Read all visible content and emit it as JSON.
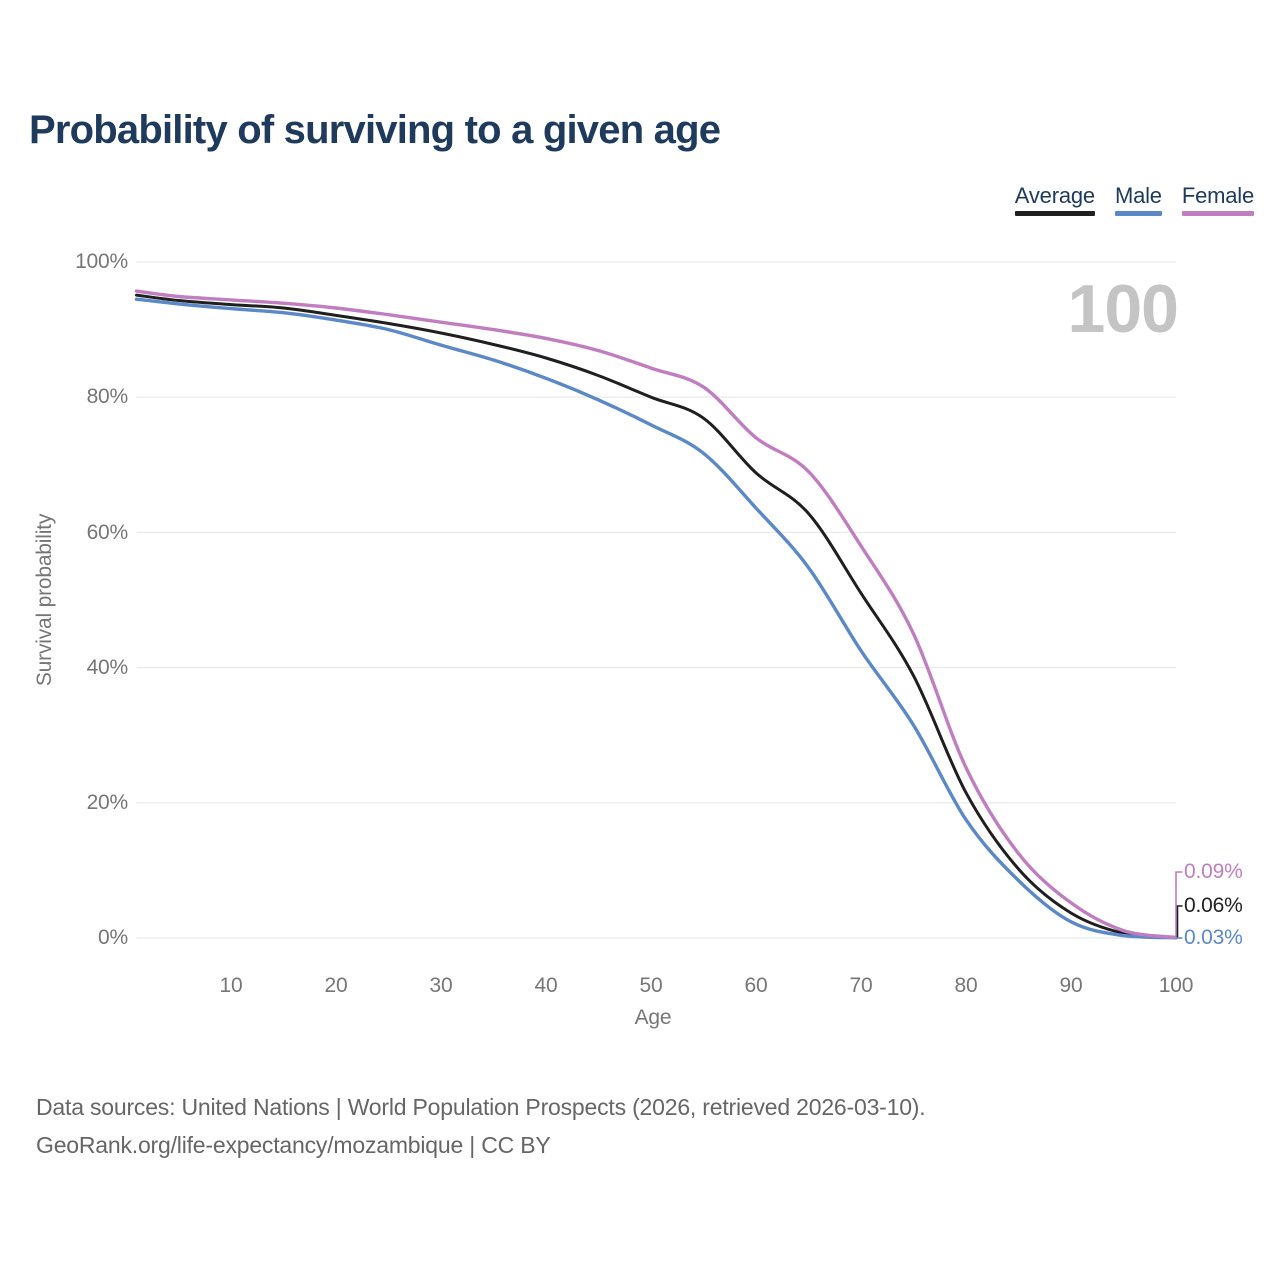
{
  "title": "Probability of surviving to a given age",
  "watermark": "100",
  "legend": [
    {
      "label": "Average",
      "color": "#1f1f1f"
    },
    {
      "label": "Male",
      "color": "#5b89c8"
    },
    {
      "label": "Female",
      "color": "#c07ec0"
    }
  ],
  "axes": {
    "y": {
      "label": "Survival probability",
      "ticks": [
        "100%",
        "80%",
        "60%",
        "40%",
        "20%",
        "0%"
      ]
    },
    "x": {
      "label": "Age",
      "ticks": [
        "10",
        "20",
        "30",
        "40",
        "50",
        "60",
        "70",
        "80",
        "90",
        "100"
      ]
    }
  },
  "end_labels": [
    {
      "text": "0.09%",
      "series": "Female"
    },
    {
      "text": "0.06%",
      "series": "Average"
    },
    {
      "text": "0.03%",
      "series": "Male"
    }
  ],
  "footer": {
    "line1": "Data sources: United Nations | World Population Prospects (2026, retrieved 2026-03-10).",
    "line2": "GeoRank.org/life-expectancy/mozambique | CC BY"
  },
  "chart_data": {
    "type": "line",
    "title": "Probability of surviving to a given age",
    "xlabel": "Age",
    "ylabel": "Survival probability",
    "xlim": [
      1,
      100
    ],
    "ylim": [
      0,
      100
    ],
    "y_tick_percent": [
      0,
      20,
      40,
      60,
      80,
      100
    ],
    "x_ticks": [
      10,
      20,
      30,
      40,
      50,
      60,
      70,
      80,
      90,
      100
    ],
    "grid": "horizontal",
    "legend_position": "top-right",
    "x": [
      1,
      5,
      10,
      15,
      20,
      25,
      30,
      35,
      40,
      45,
      50,
      55,
      60,
      65,
      70,
      75,
      80,
      85,
      90,
      95,
      100
    ],
    "series": [
      {
        "name": "Average",
        "color": "#1f1f1f",
        "values": [
          95.1,
          94.3,
          93.7,
          93.2,
          92.1,
          90.9,
          89.5,
          87.8,
          85.8,
          83.2,
          80.0,
          76.9,
          68.8,
          62.8,
          51.0,
          38.8,
          21.5,
          10.2,
          3.7,
          0.7,
          0.06
        ]
      },
      {
        "name": "Male",
        "color": "#5b89c8",
        "values": [
          94.5,
          93.8,
          93.1,
          92.5,
          91.4,
          90.0,
          87.7,
          85.5,
          82.8,
          79.6,
          75.9,
          71.7,
          63.6,
          54.8,
          42.5,
          31.5,
          17.5,
          8.5,
          2.4,
          0.35,
          0.03
        ]
      },
      {
        "name": "Female",
        "color": "#c07ec0",
        "values": [
          95.7,
          94.9,
          94.4,
          93.9,
          93.2,
          92.2,
          91.1,
          90.0,
          88.7,
          86.9,
          84.3,
          81.5,
          74.0,
          69.0,
          58.0,
          45.0,
          25.2,
          12.5,
          5.2,
          1.1,
          0.09
        ]
      }
    ]
  }
}
